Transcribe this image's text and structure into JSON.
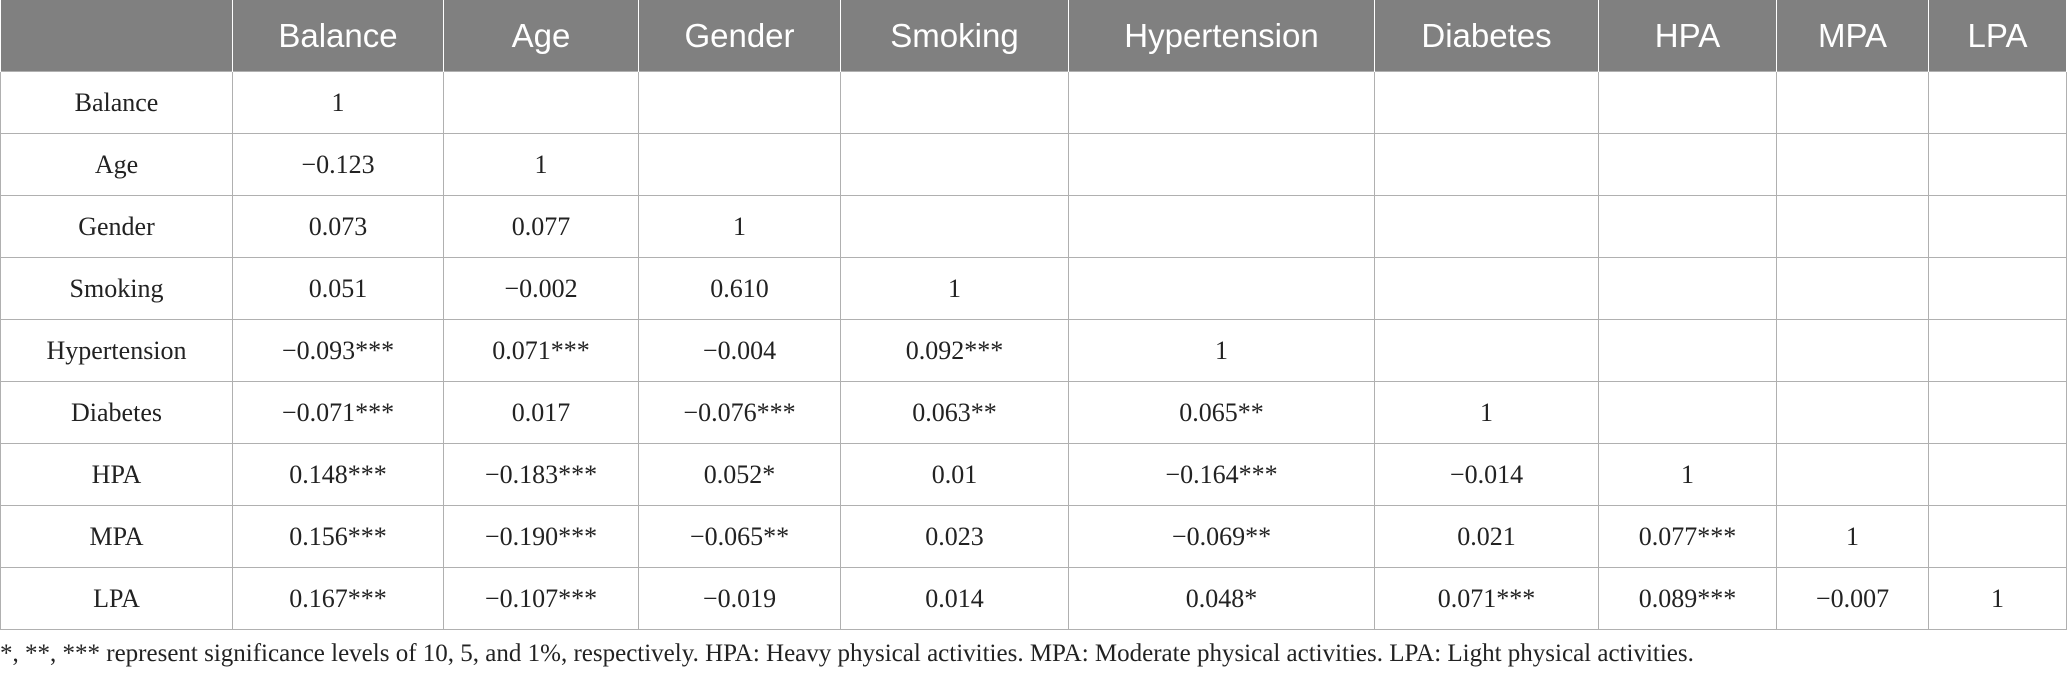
{
  "table": {
    "headers": [
      "",
      "Balance",
      "Age",
      "Gender",
      "Smoking",
      "Hypertension",
      "Diabetes",
      "HPA",
      "MPA",
      "LPA"
    ],
    "rows": [
      [
        "Balance",
        "1",
        "",
        "",
        "",
        "",
        "",
        "",
        "",
        ""
      ],
      [
        "Age",
        "−0.123",
        "1",
        "",
        "",
        "",
        "",
        "",
        "",
        ""
      ],
      [
        "Gender",
        "0.073",
        "0.077",
        "1",
        "",
        "",
        "",
        "",
        "",
        ""
      ],
      [
        "Smoking",
        "0.051",
        "−0.002",
        "0.610",
        "1",
        "",
        "",
        "",
        "",
        ""
      ],
      [
        "Hypertension",
        "−0.093***",
        "0.071***",
        "−0.004",
        "0.092***",
        "1",
        "",
        "",
        "",
        ""
      ],
      [
        "Diabetes",
        "−0.071***",
        "0.017",
        "−0.076***",
        "0.063**",
        "0.065**",
        "1",
        "",
        "",
        ""
      ],
      [
        "HPA",
        "0.148***",
        "−0.183***",
        "0.052*",
        "0.01",
        "−0.164***",
        "−0.014",
        "1",
        "",
        ""
      ],
      [
        "MPA",
        "0.156***",
        "−0.190***",
        "−0.065**",
        "0.023",
        "−0.069**",
        "0.021",
        "0.077***",
        "1",
        ""
      ],
      [
        "LPA",
        "0.167***",
        "−0.107***",
        "−0.019",
        "0.014",
        "0.048*",
        "0.071***",
        "0.089***",
        "−0.007",
        "1"
      ]
    ]
  },
  "footnote": "*, **, *** represent significance levels of 10, 5, and 1%, respectively. HPA: Heavy physical activities. MPA: Moderate physical activities. LPA: Light physical activities."
}
